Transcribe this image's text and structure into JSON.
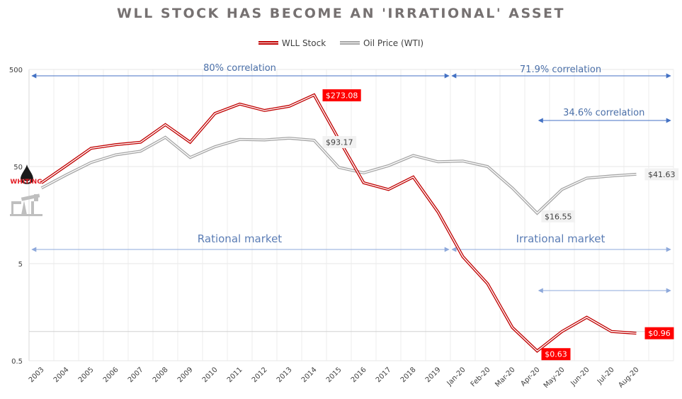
{
  "chart_data": {
    "type": "line",
    "title": "WLL STOCK HAS BECOME AN 'IRRATIONAL' ASSET",
    "xlabel": "",
    "ylabel": "",
    "yscale": "log",
    "ylim": [
      0.5,
      500
    ],
    "yticks": [
      "500",
      "50",
      "5",
      "0.5"
    ],
    "ytick_values": [
      500,
      50,
      5,
      0.5
    ],
    "grid": true,
    "legend_position": "top-center",
    "categories": [
      "2003",
      "2004",
      "2005",
      "2006",
      "2007",
      "2008",
      "2009",
      "2010",
      "2011",
      "2012",
      "2013",
      "2014",
      "2015",
      "2016",
      "2017",
      "2018",
      "2019",
      "Jan-20",
      "Feb-20",
      "Mar-20",
      "Apr-20",
      "May-20",
      "Jun-20",
      "Jul-20",
      "Aug-20"
    ],
    "series": [
      {
        "name": "WLL Stock",
        "color": "#C00000",
        "values": [
          34,
          51,
          77,
          84,
          89,
          135,
          89,
          176,
          220,
          189,
          209,
          273.08,
          95,
          34,
          29,
          39,
          17,
          5.9,
          3.1,
          1.1,
          0.63,
          1.0,
          1.4,
          1.0,
          0.96
        ]
      },
      {
        "name": "Oil Price (WTI)",
        "color": "#A6A6A6",
        "values": [
          30,
          41,
          55,
          66,
          72,
          100,
          62,
          80,
          95,
          94,
          98,
          93.17,
          49,
          43,
          51,
          65,
          56,
          57,
          50,
          30,
          16.55,
          29,
          38,
          40,
          41.63
        ]
      }
    ],
    "data_labels": [
      {
        "series": "WLL Stock",
        "category": "2014",
        "text": "$273.08"
      },
      {
        "series": "Oil Price (WTI)",
        "category": "2014",
        "text": "$93.17"
      },
      {
        "series": "Oil Price (WTI)",
        "category": "Apr-20",
        "text": "$16.55"
      },
      {
        "series": "Oil Price (WTI)",
        "category": "Aug-20",
        "text": "$41.63"
      },
      {
        "series": "WLL Stock",
        "category": "Apr-20",
        "text": "$0.63"
      },
      {
        "series": "WLL Stock",
        "category": "Aug-20",
        "text": "$0.96"
      }
    ],
    "annotations": [
      {
        "text": "80% correlation",
        "from": "2003",
        "to": "2019"
      },
      {
        "text": "71.9% correlation",
        "from": "Jan-20",
        "to": "end"
      },
      {
        "text": "34.6% correlation",
        "from": "Apr-20",
        "to": "end"
      },
      {
        "text": "Rational market",
        "from": "2003",
        "to": "2019"
      },
      {
        "text": "Irrational market",
        "from": "Jan-20",
        "to": "end"
      },
      {
        "text": "",
        "from": "Apr-20",
        "to": "end"
      }
    ],
    "reference_line_value": 1.0
  },
  "logo": {
    "text": "WHITING",
    "icon": "oil-drop-icon",
    "secondary_icon": "pumpjack-icon"
  }
}
